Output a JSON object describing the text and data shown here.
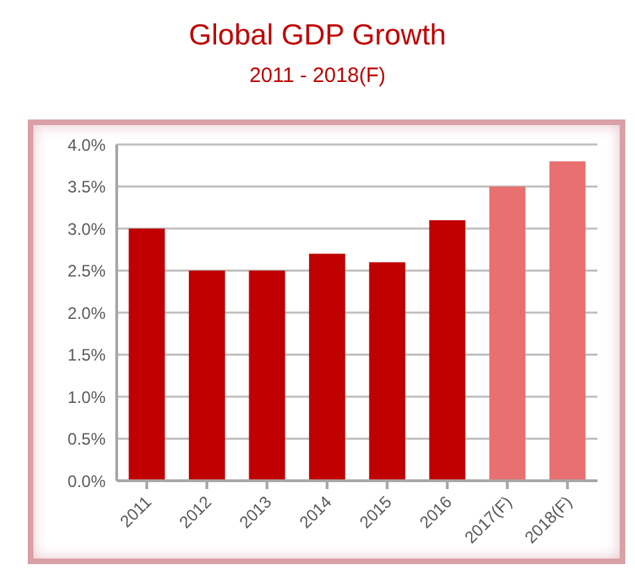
{
  "chart_data": {
    "type": "bar",
    "title": "Global GDP Growth",
    "subtitle": "2011 - 2018(F)",
    "categories": [
      "2011",
      "2012",
      "2013",
      "2014",
      "2015",
      "2016",
      "2017(F)",
      "2018(F)"
    ],
    "values": [
      3.0,
      2.5,
      2.5,
      2.7,
      2.6,
      3.1,
      3.5,
      3.8
    ],
    "colors": [
      "#c00000",
      "#c00000",
      "#c00000",
      "#c00000",
      "#c00000",
      "#c00000",
      "#e87070",
      "#e87070"
    ],
    "ylim": [
      0,
      4
    ],
    "yticks": [
      {
        "value": 0,
        "label": "0.0%"
      },
      {
        "value": 0.5,
        "label": "0.5%"
      },
      {
        "value": 1,
        "label": "1.0%"
      },
      {
        "value": 1.5,
        "label": "1.5%"
      },
      {
        "value": 2,
        "label": "2.0%"
      },
      {
        "value": 2.5,
        "label": "2.5%"
      },
      {
        "value": 3,
        "label": "3.0%"
      },
      {
        "value": 3.5,
        "label": "3.5%"
      },
      {
        "value": 4,
        "label": "4.0%"
      }
    ],
    "grid": "y"
  }
}
